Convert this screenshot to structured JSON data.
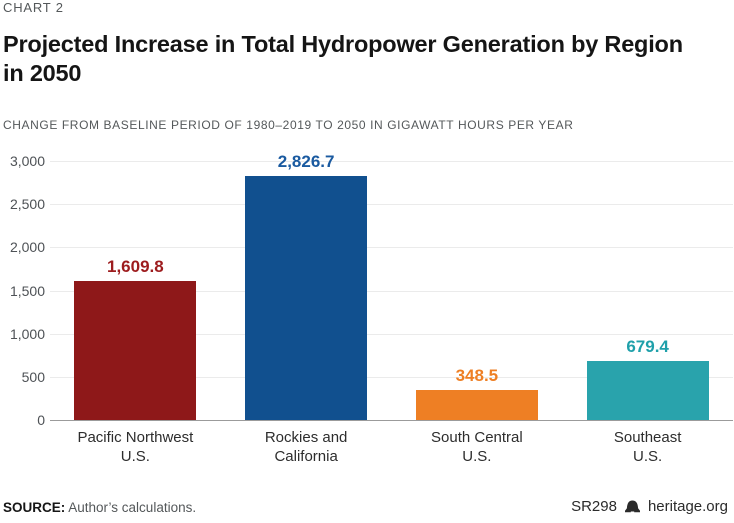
{
  "header": {
    "kicker": "CHART 2",
    "title": "Projected Increase in Total Hydropower Generation by Region in 2050",
    "subtitle": "CHANGE FROM BASELINE PERIOD OF 1980–2019 TO 2050 IN GIGAWATT HOURS PER YEAR"
  },
  "chart_data": {
    "type": "bar",
    "title": "Projected Increase in Total Hydropower Generation by Region in 2050",
    "subtitle_units": "Change from baseline period of 1980–2019 to 2050 in gigawatt hours per year",
    "categories": [
      "Pacific Northwest\nU.S.",
      "Rockies and\nCalifornia",
      "South Central\nU.S.",
      "Southeast\nU.S."
    ],
    "values": [
      1609.8,
      2826.7,
      348.5,
      679.4
    ],
    "value_labels": [
      "1,609.8",
      "2,826.7",
      "348.5",
      "679.4"
    ],
    "bar_colors": [
      "#8E1819",
      "#11508F",
      "#EE7F24",
      "#29A3AC"
    ],
    "value_label_colors": [
      "#9D1C1E",
      "#1A5AA0",
      "#EE7F24",
      "#1FA0AA"
    ],
    "xlabel": "",
    "ylabel": "",
    "ylim": [
      0,
      3000
    ],
    "yticks": [
      0,
      500,
      1000,
      1500,
      2000,
      2500,
      3000
    ],
    "ytick_labels": [
      "0",
      "500",
      "1,000",
      "1,500",
      "2,000",
      "2,500",
      "3,000"
    ],
    "grid": true,
    "legend": false
  },
  "footer": {
    "source_label": "SOURCE:",
    "source_text": " Author’s calculations.",
    "report_id": "SR298",
    "site": "heritage.org",
    "bell_icon": "liberty-bell-icon"
  }
}
